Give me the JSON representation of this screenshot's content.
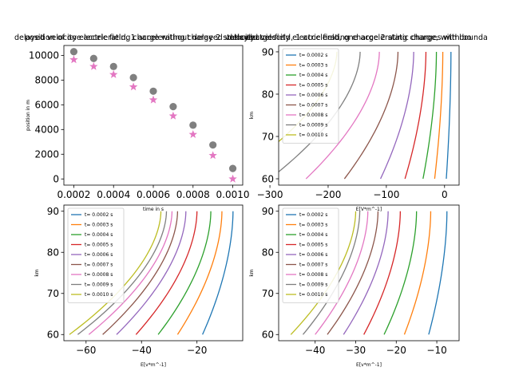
{
  "chart_data": [
    {
      "type": "scatter",
      "title": "position of one accelerating charge without delayed velocity",
      "xlabel": "time in s",
      "ylabel": "position in m",
      "xlim": [
        0.00015,
        0.00105
      ],
      "ylim": [
        -500,
        10800
      ],
      "xticks": [
        "0.0002",
        "0.0004",
        "0.0006",
        "0.0008",
        "0.0010"
      ],
      "xtick_values": [
        0.0002,
        0.0004,
        0.0006,
        0.0008,
        0.001
      ],
      "yticks": [
        "0",
        "2000",
        "4000",
        "6000",
        "8000",
        "10000"
      ],
      "ytick_values": [
        0,
        2000,
        4000,
        6000,
        8000,
        10000
      ],
      "series": [
        {
          "marker": "circle",
          "color": "#808080",
          "x": [
            0.0002,
            0.0003,
            0.0004,
            0.0005,
            0.0006,
            0.0007,
            0.0008,
            0.0009,
            0.001
          ],
          "values": [
            10300,
            9750,
            9100,
            8200,
            7100,
            5850,
            4350,
            2750,
            850
          ]
        },
        {
          "marker": "star",
          "color": "#e377c2",
          "x": [
            0.0002,
            0.0003,
            0.0004,
            0.0005,
            0.0006,
            0.0007,
            0.0008,
            0.0009,
            0.001
          ],
          "values": [
            9650,
            9100,
            8450,
            7450,
            6400,
            5100,
            3600,
            1900,
            0
          ]
        }
      ]
    },
    {
      "type": "line",
      "title": "electric field, 1 accelerating charge 2 static charges with bo",
      "xlabel": "E[V*m^-1]",
      "ylabel": "km",
      "xlim": [
        -285,
        25
      ],
      "ylim": [
        58.5,
        91.5
      ],
      "xticks": [
        "−300",
        "−200",
        "−100",
        "0"
      ],
      "xtick_values": [
        -300,
        -200,
        -100,
        0
      ],
      "yticks": [
        "60",
        "70",
        "80",
        "90"
      ],
      "ytick_values": [
        60,
        70,
        80,
        90
      ],
      "legend": "upper-left",
      "series": [
        {
          "name": "t= 0.0002 s",
          "color": "#1f77b4",
          "E_top": 11,
          "E_bottom": 3
        },
        {
          "name": "t= 0.0003 s",
          "color": "#ff7f0e",
          "E_top": -3,
          "E_bottom": -17
        },
        {
          "name": "t= 0.0004 s",
          "color": "#2ca02c",
          "E_top": -14,
          "E_bottom": -37
        },
        {
          "name": "t= 0.0005 s",
          "color": "#d62728",
          "E_top": -32,
          "E_bottom": -68
        },
        {
          "name": "t= 0.0006 s",
          "color": "#9467bd",
          "E_top": -53,
          "E_bottom": -110
        },
        {
          "name": "t= 0.0007 s",
          "color": "#8c564b",
          "E_top": -80,
          "E_bottom": -172
        },
        {
          "name": "t= 0.0008 s",
          "color": "#e377c2",
          "E_top": -112,
          "E_bottom": -238
        },
        {
          "name": "t= 0.0009 s",
          "color": "#7f7f7f",
          "E_top": -145,
          "E_bottom": -300
        },
        {
          "name": "t= 0.0010 s",
          "color": "#bcbd22",
          "E_top": -185,
          "E_bottom": -372
        }
      ]
    },
    {
      "type": "line",
      "title": "delayed velocity electric field, 1 accelerating charge 2 static charges",
      "xlabel": "E[v*m^-1]",
      "ylabel": "km",
      "xlim": [
        -68,
        -3.5
      ],
      "ylim": [
        58.5,
        91.5
      ],
      "xticks": [
        "−60",
        "−40",
        "−20"
      ],
      "xtick_values": [
        -60,
        -40,
        -20
      ],
      "yticks": [
        "60",
        "70",
        "80",
        "90"
      ],
      "ytick_values": [
        60,
        70,
        80,
        90
      ],
      "legend": "upper-left",
      "series": [
        {
          "name": "t= 0.0002 s",
          "color": "#1f77b4",
          "E_top": -7,
          "E_bottom": -18
        },
        {
          "name": "t= 0.0003 s",
          "color": "#ff7f0e",
          "E_top": -11,
          "E_bottom": -27
        },
        {
          "name": "t= 0.0004 s",
          "color": "#2ca02c",
          "E_top": -15,
          "E_bottom": -34
        },
        {
          "name": "t= 0.0005 s",
          "color": "#d62728",
          "E_top": -20,
          "E_bottom": -42
        },
        {
          "name": "t= 0.0006 s",
          "color": "#9467bd",
          "E_top": -24,
          "E_bottom": -49
        },
        {
          "name": "t= 0.0007 s",
          "color": "#8c564b",
          "E_top": -27,
          "E_bottom": -54
        },
        {
          "name": "t= 0.0008 s",
          "color": "#e377c2",
          "E_top": -29,
          "E_bottom": -59
        },
        {
          "name": "t= 0.0009 s",
          "color": "#7f7f7f",
          "E_top": -31,
          "E_bottom": -63
        },
        {
          "name": "t= 0.0010 s",
          "color": "#bcbd22",
          "E_top": -33,
          "E_bottom": -66
        }
      ]
    },
    {
      "type": "line",
      "title": "delayed velocity electric field, one accelerating charge, with bounda",
      "xlabel": "E[v*m^-1]",
      "ylabel": "km",
      "xlim": [
        -49,
        -4.5
      ],
      "ylim": [
        58.5,
        91.5
      ],
      "xticks": [
        "−40",
        "−30",
        "−20",
        "−10"
      ],
      "xtick_values": [
        -40,
        -30,
        -20,
        -10
      ],
      "yticks": [
        "60",
        "70",
        "80",
        "90"
      ],
      "ytick_values": [
        60,
        70,
        80,
        90
      ],
      "legend": "upper-left",
      "series": [
        {
          "name": "t= 0.0002 s",
          "color": "#1f77b4",
          "E_top": -7.5,
          "E_bottom": -12
        },
        {
          "name": "t= 0.0003 s",
          "color": "#ff7f0e",
          "E_top": -11.5,
          "E_bottom": -18
        },
        {
          "name": "t= 0.0004 s",
          "color": "#2ca02c",
          "E_top": -15,
          "E_bottom": -23
        },
        {
          "name": "t= 0.0005 s",
          "color": "#d62728",
          "E_top": -19,
          "E_bottom": -28
        },
        {
          "name": "t= 0.0006 s",
          "color": "#9467bd",
          "E_top": -22,
          "E_bottom": -33
        },
        {
          "name": "t= 0.0007 s",
          "color": "#8c564b",
          "E_top": -24.5,
          "E_bottom": -37
        },
        {
          "name": "t= 0.0008 s",
          "color": "#e377c2",
          "E_top": -27,
          "E_bottom": -40
        },
        {
          "name": "t= 0.0009 s",
          "color": "#7f7f7f",
          "E_top": -29,
          "E_bottom": -43
        },
        {
          "name": "t= 0.0010 s",
          "color": "#bcbd22",
          "E_top": -30,
          "E_bottom": -46
        }
      ]
    }
  ]
}
